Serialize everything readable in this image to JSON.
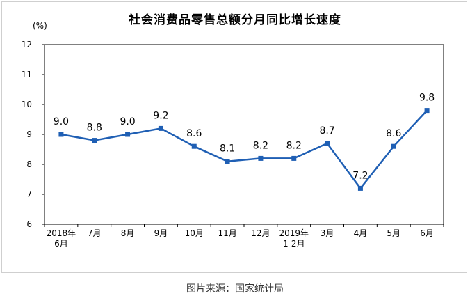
{
  "chart_data": {
    "type": "line",
    "title": "社会消费品零售总额分月同比增长速度",
    "unit_label": "(%)",
    "ylim": [
      6,
      12
    ],
    "yticks": [
      6,
      7,
      8,
      9,
      10,
      11,
      12
    ],
    "grid": false,
    "categories": [
      [
        "2018年",
        "6月"
      ],
      [
        "7月"
      ],
      [
        "8月"
      ],
      [
        "9月"
      ],
      [
        "10月"
      ],
      [
        "11月"
      ],
      [
        "12月"
      ],
      [
        "2019年",
        "1-2月"
      ],
      [
        "3月"
      ],
      [
        "4月"
      ],
      [
        "5月"
      ],
      [
        "6月"
      ]
    ],
    "values": [
      9.0,
      8.8,
      9.0,
      9.2,
      8.6,
      8.1,
      8.2,
      8.2,
      8.7,
      7.2,
      8.6,
      9.8
    ],
    "data_labels": [
      "9.0",
      "8.8",
      "9.0",
      "9.2",
      "8.6",
      "8.1",
      "8.2",
      "8.2",
      "8.7",
      "7.2",
      "8.6",
      "9.8"
    ],
    "series_color": "#1f5fb4"
  },
  "source": "图片来源：国家统计局"
}
